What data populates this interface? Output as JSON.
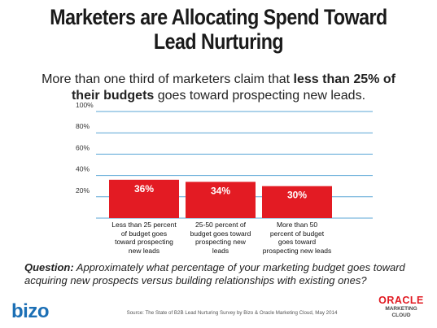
{
  "title": {
    "line1": "Marketers are Allocating Spend Toward",
    "line2": "Lead Nurturing"
  },
  "subtitle": {
    "line1_pre": "More than one third of marketers claim that ",
    "bold1": "less than 25% of",
    "bold2": "their budgets",
    "line2_post": " goes toward prospecting new leads."
  },
  "chart_data": {
    "type": "bar",
    "categories": [
      "Less than 25 percent of budget goes toward prospecting new leads",
      "25-50 percent of budget goes toward prospecting new leads",
      "More than 50 percent of budget goes toward prospecting new leads"
    ],
    "values": [
      36,
      34,
      30
    ],
    "data_labels": [
      "36%",
      "34%",
      "30%"
    ],
    "yticks": [
      "20%",
      "40%",
      "60%",
      "80%",
      "100%"
    ],
    "ylim": [
      0,
      100
    ],
    "grid": true,
    "bar_color": "#e31b23",
    "grid_color": "#5aa6d6"
  },
  "category_lines": [
    [
      "Less than 25 percent",
      "of budget goes",
      "toward prospecting",
      "new leads"
    ],
    [
      "25-50 percent of",
      "budget goes toward",
      "prospecting new",
      "leads"
    ],
    [
      "More than 50",
      "percent of budget",
      "goes toward",
      "prospecting new leads"
    ]
  ],
  "question": {
    "label": "Question:",
    "text": " Approximately what percentage of your marketing budget goes toward acquiring new prospects versus building relationships with existing ones?"
  },
  "footer": {
    "bizo_logo": "bizo",
    "source": "Source: The State of B2B Lead Nurturing Survey by Bizo & Oracle Marketing Cloud, May 2014",
    "oracle_logo": "ORACLE",
    "oracle_sub1": "MARKETING",
    "oracle_sub2": "CLOUD"
  }
}
